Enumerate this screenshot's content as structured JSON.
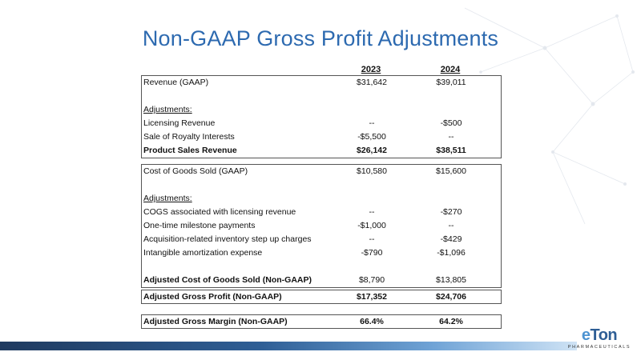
{
  "title": "Non-GAAP Gross Profit Adjustments",
  "years": [
    "2023",
    "2024"
  ],
  "revenue_section": {
    "rows": [
      {
        "label": "Revenue (GAAP)",
        "v2023": "$31,642",
        "v2024": "$39,011"
      },
      {
        "label": "Adjustments:"
      },
      {
        "label": "Licensing Revenue",
        "v2023": "--",
        "v2024": "-$500"
      },
      {
        "label": "Sale of Royalty Interests",
        "v2023": "-$5,500",
        "v2024": "--"
      },
      {
        "label": "Product Sales Revenue",
        "v2023": "$26,142",
        "v2024": "$38,511"
      }
    ]
  },
  "cogs_section": {
    "rows": [
      {
        "label": "Cost of Goods Sold (GAAP)",
        "v2023": "$10,580",
        "v2024": "$15,600"
      },
      {
        "label": "Adjustments:"
      },
      {
        "label": "COGS associated with licensing revenue",
        "v2023": "--",
        "v2024": "-$270"
      },
      {
        "label": "One-time milestone payments",
        "v2023": "-$1,000",
        "v2024": "--"
      },
      {
        "label": "Acquisition-related inventory step up charges",
        "v2023": "--",
        "v2024": "-$429"
      },
      {
        "label": "Intangible amortization expense",
        "v2023": "-$790",
        "v2024": "-$1,096"
      },
      {
        "label": "Adjusted Cost of Goods Sold (Non-GAAP)",
        "v2023": "$8,790",
        "v2024": "$13,805"
      }
    ]
  },
  "gross_profit": {
    "label": "Adjusted Gross Profit (Non-GAAP)",
    "v2023": "$17,352",
    "v2024": "$24,706"
  },
  "gross_margin": {
    "label": "Adjusted Gross Margin (Non-GAAP)",
    "v2023": "66.4%",
    "v2024": "64.2%"
  },
  "logo": {
    "brand_e": "e",
    "brand_rest": "Ton",
    "sub": "PHARMACEUTICALS"
  },
  "colors": {
    "title": "#2d6ab0",
    "brand_dark": "#2e5e95",
    "brand_light": "#4d93d1"
  }
}
